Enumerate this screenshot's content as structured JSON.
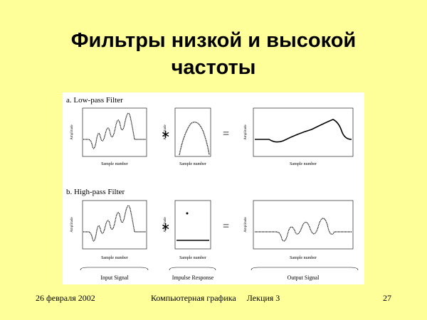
{
  "slide": {
    "title_line1": "Фильтры низкой и высокой",
    "title_line2": "частоты"
  },
  "figure": {
    "panel_a_title": "a.  Low-pass Filter",
    "panel_b_title": "b.  High-pass Filter",
    "xlabel": "Sample number",
    "ylabel": "Amplitude",
    "convolution_symbol": "∗",
    "equals_symbol": "=",
    "bottom_label_input": "Input Signal",
    "bottom_label_impulse": "Impulse Response",
    "bottom_label_output": "Output Signal"
  },
  "footer": {
    "date": "26 февраля 2002",
    "course": "Компьютерная графика     Лекция 3",
    "page": "27"
  }
}
